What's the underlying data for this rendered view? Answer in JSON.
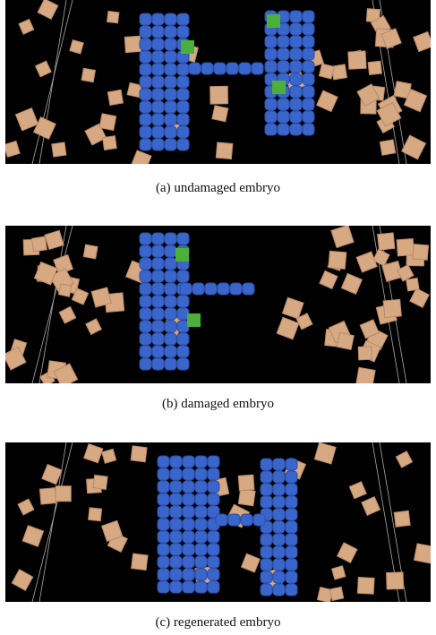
{
  "figure": {
    "panels": [
      {
        "caption": "(a) undamaged embryo"
      },
      {
        "caption": "(b) damaged embryo"
      },
      {
        "caption": "(c) regenerated embryo"
      }
    ]
  }
}
